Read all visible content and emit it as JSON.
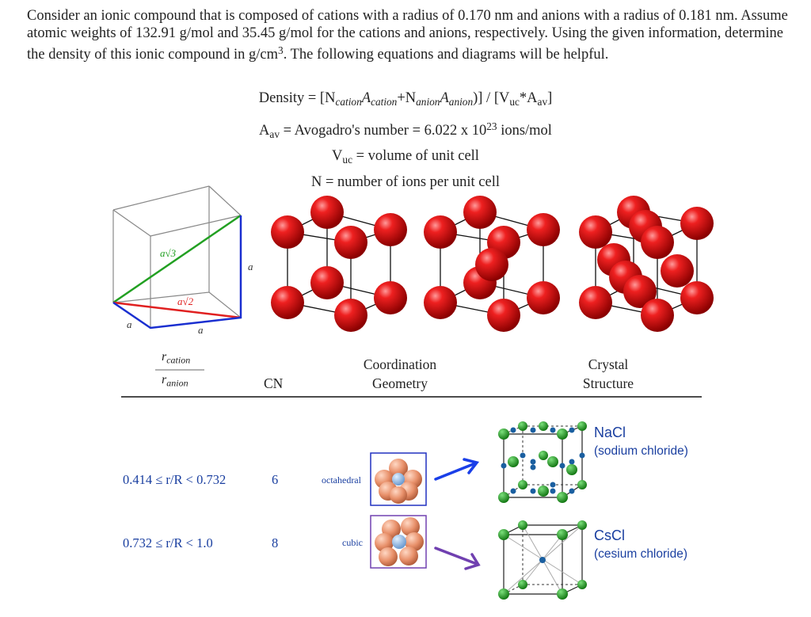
{
  "problem": {
    "text": "Consider an ionic compound that is composed of cations with a radius of 0.170 nm and anions with a radius of 0.181 nm.  Assume atomic weights of 132.91 g/mol and 35.45 g/mol for the cations and anions, respectively.  Using the given information, determine the density of this ionic compound in g/cm",
    "exp": "3",
    "text_end": ".  The following equations and diagrams will be helpful."
  },
  "equations": {
    "density": {
      "lhs": "Density = [N",
      "sub1": "cation",
      "a1": "A",
      "sub2": "cation",
      "plus": "+N",
      "sub3": "anion",
      "a2": "A",
      "sub4": "anion",
      "rest": ")] / [V",
      "uc": "uc",
      "star": "*A",
      "av": "av",
      "end": "]"
    },
    "avogadro": {
      "a": "A",
      "av": "av",
      "text": " = Avogadro's number = 6.022 x 10",
      "exp": "23",
      "tail": " ions/mol"
    },
    "vuc": {
      "v": "V",
      "uc": "uc",
      "text": " = volume of unit cell"
    },
    "n": {
      "text": "N = number of ions per unit cell"
    }
  },
  "cube_labels": {
    "diag3": "a√3",
    "diag2": "a√2",
    "edge_a": "a"
  },
  "table": {
    "headers": {
      "ratio_top": "r",
      "ratio_top_sub": "cation",
      "ratio_bot": "r",
      "ratio_bot_sub": "anion",
      "cn": "CN",
      "geometry_line1": "Coordination",
      "geometry_line2": "Geometry",
      "structure_line1": "Crystal",
      "structure_line2": "Structure"
    },
    "rows": [
      {
        "range": "0.414 ≤ r/R < 0.732",
        "cn": "6",
        "geometry": "octahedral",
        "name": "NaCl",
        "full": "(sodium chloride)"
      },
      {
        "range": "0.732 ≤ r/R < 1.0",
        "cn": "8",
        "geometry": "cubic",
        "name": "CsCl",
        "full": "(cesium chloride)"
      }
    ]
  },
  "colors": {
    "sphere_red": "#e01010",
    "green_line": "#22a022",
    "red_line": "#e02020",
    "blue_line": "#1a2fd0",
    "arrow_blue": "#1a3fe8",
    "arrow_purple": "#7040b0",
    "label_blue": "#1a3fa0",
    "nacl_green": "#1c9c1c",
    "nacl_blue": "#1a5fa0",
    "salmon": "#e8906a"
  }
}
